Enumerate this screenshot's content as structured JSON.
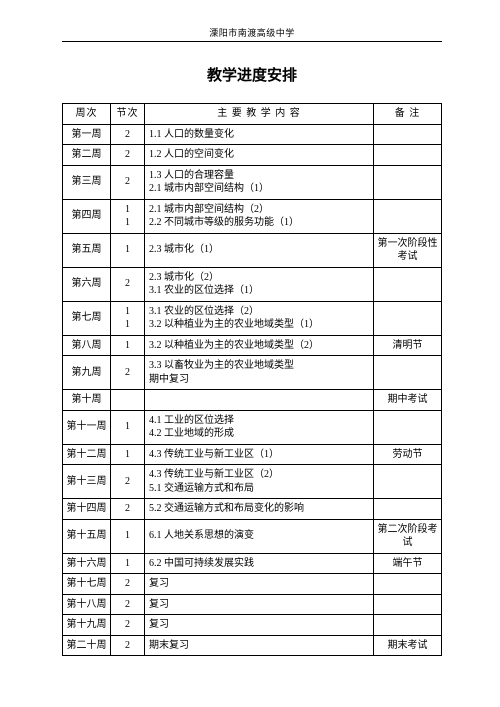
{
  "header": "溧阳市南渡高级中学",
  "title": "教学进度安排",
  "columns": [
    "周次",
    "节次",
    "主  要  教  学  内  容",
    "备  注"
  ],
  "rows": [
    {
      "week": "第一周",
      "section": "2",
      "content": "1.1 人口的数量变化",
      "note": ""
    },
    {
      "week": "第二周",
      "section": "2",
      "content": "1.2 人口的空间变化",
      "note": ""
    },
    {
      "week": "第三周",
      "section": "2",
      "content": "1.3 人口的合理容量\n2.1 城市内部空间结构（1）",
      "note": ""
    },
    {
      "week": "第四周",
      "section": "1\n1",
      "content": "2.1 城市内部空间结构（2）\n2.2 不同城市等级的服务功能（1）",
      "note": ""
    },
    {
      "week": "第五周",
      "section": "1",
      "content": "2.3 城市化（1）",
      "note": "第一次阶段性考试"
    },
    {
      "week": "第六周",
      "section": "2",
      "content": "2.3 城市化（2）\n3.1 农业的区位选择（1）",
      "note": ""
    },
    {
      "week": "第七周",
      "section": "1\n1",
      "content": "3.1 农业的区位选择（2）\n3.2 以种植业为主的农业地域类型（1）",
      "note": ""
    },
    {
      "week": "第八周",
      "section": "1",
      "content": "3.2 以种植业为主的农业地域类型（2）",
      "note": "清明节"
    },
    {
      "week": "第九周",
      "section": "2",
      "content": "3.3 以畜牧业为主的农业地域类型\n期中复习",
      "note": ""
    },
    {
      "week": "第十周",
      "section": "",
      "content": "",
      "note": "期中考试"
    },
    {
      "week": "第十一周",
      "section": "1",
      "content": "4.1 工业的区位选择\n4.2 工业地域的形成",
      "note": ""
    },
    {
      "week": "第十二周",
      "section": "1",
      "content": "4.3 传统工业与新工业区（1）",
      "note": "劳动节"
    },
    {
      "week": "第十三周",
      "section": "2",
      "content": "4.3 传统工业与新工业区（2）\n5.1 交通运输方式和布局",
      "note": ""
    },
    {
      "week": "第十四周",
      "section": "2",
      "content": "5.2 交通运输方式和布局变化的影响",
      "note": ""
    },
    {
      "week": "第十五周",
      "section": "1",
      "content": "6.1 人地关系思想的演变",
      "note": "第二次阶段考试"
    },
    {
      "week": "第十六周",
      "section": "1",
      "content": "6.2 中国可持续发展实践",
      "note": "端午节"
    },
    {
      "week": "第十七周",
      "section": "2",
      "content": "复习",
      "note": ""
    },
    {
      "week": "第十八周",
      "section": "2",
      "content": "复习",
      "note": ""
    },
    {
      "week": "第十九周",
      "section": "2",
      "content": "复习",
      "note": ""
    },
    {
      "week": "第二十周",
      "section": "2",
      "content": "期末复习",
      "note": "期末考试"
    }
  ]
}
